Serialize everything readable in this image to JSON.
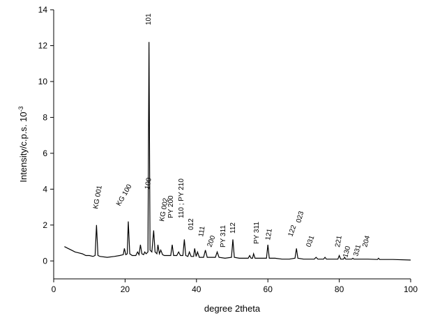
{
  "chart_data": {
    "type": "line",
    "xlabel": "degree 2theta",
    "ylabel": "Intensity/c.p.s. 10",
    "ylabel_sup": "-3",
    "xlim": [
      0,
      100
    ],
    "xticks": [
      0,
      20,
      40,
      60,
      80,
      100
    ],
    "ylim": [
      -1,
      14
    ],
    "yticks": [
      0,
      2,
      4,
      6,
      8,
      10,
      12,
      14
    ],
    "color": "#000000",
    "x": [
      3,
      4,
      5,
      6,
      7,
      8,
      9,
      10,
      11,
      11.6,
      12,
      12.4,
      13,
      15,
      17,
      18.5,
      19.5,
      19.8,
      20.2,
      20.6,
      20.9,
      21.3,
      22,
      23,
      23.5,
      23.9,
      24.3,
      24.7,
      25.2,
      25.5,
      25.9,
      26.4,
      26.7,
      27,
      27.5,
      28,
      28.4,
      28.9,
      29.2,
      29.6,
      30,
      30.5,
      31,
      32,
      32.8,
      33.2,
      33.6,
      34.5,
      35,
      35.5,
      36.2,
      36.6,
      37,
      37.6,
      38,
      38.5,
      39.2,
      39.5,
      39.9,
      40.3,
      40.8,
      42,
      42.5,
      43,
      45.3,
      45.8,
      46.3,
      48,
      49.8,
      50.2,
      50.6,
      52,
      54.5,
      54.9,
      55.3,
      55.7,
      56,
      56.4,
      58,
      59.6,
      60,
      60.4,
      62,
      64,
      66,
      67.6,
      68,
      68.4,
      70,
      73,
      73.5,
      74,
      75.6,
      76,
      76.4,
      79.6,
      80,
      80.4,
      81.2,
      81.5,
      81.8,
      83.5,
      83.8,
      84.1,
      88,
      90.7,
      91,
      91.3,
      95,
      100
    ],
    "values": [
      0.8,
      0.7,
      0.6,
      0.5,
      0.45,
      0.4,
      0.3,
      0.3,
      0.25,
      0.3,
      2.0,
      0.3,
      0.25,
      0.2,
      0.25,
      0.3,
      0.35,
      0.7,
      0.35,
      0.4,
      2.2,
      0.4,
      0.3,
      0.3,
      0.5,
      0.35,
      0.9,
      0.4,
      0.35,
      0.5,
      0.4,
      0.5,
      12.2,
      0.6,
      0.5,
      1.7,
      0.5,
      0.4,
      0.9,
      0.4,
      0.6,
      0.35,
      0.3,
      0.3,
      0.3,
      0.9,
      0.3,
      0.3,
      0.5,
      0.3,
      0.3,
      1.2,
      0.3,
      0.25,
      0.5,
      0.25,
      0.25,
      0.7,
      0.25,
      0.5,
      0.2,
      0.2,
      0.6,
      0.2,
      0.2,
      0.5,
      0.2,
      0.15,
      0.2,
      1.2,
      0.2,
      0.15,
      0.15,
      0.3,
      0.15,
      0.15,
      0.4,
      0.15,
      0.15,
      0.15,
      0.9,
      0.15,
      0.15,
      0.1,
      0.1,
      0.15,
      0.7,
      0.15,
      0.1,
      0.1,
      0.2,
      0.1,
      0.1,
      0.2,
      0.1,
      0.1,
      0.3,
      0.1,
      0.1,
      0.2,
      0.1,
      0.1,
      0.15,
      0.1,
      0.1,
      0.08,
      0.15,
      0.08,
      0.08,
      0.05
    ],
    "annotations": [
      "KG 001",
      "KG 100",
      "100",
      "KG 002",
      "101",
      "PY 200",
      "110 ; PY 210",
      "012",
      "111",
      "200",
      "PY 311",
      "112",
      "PY 311",
      "121",
      "122",
      "023",
      "031",
      "221",
      "130",
      "331",
      "204"
    ]
  }
}
